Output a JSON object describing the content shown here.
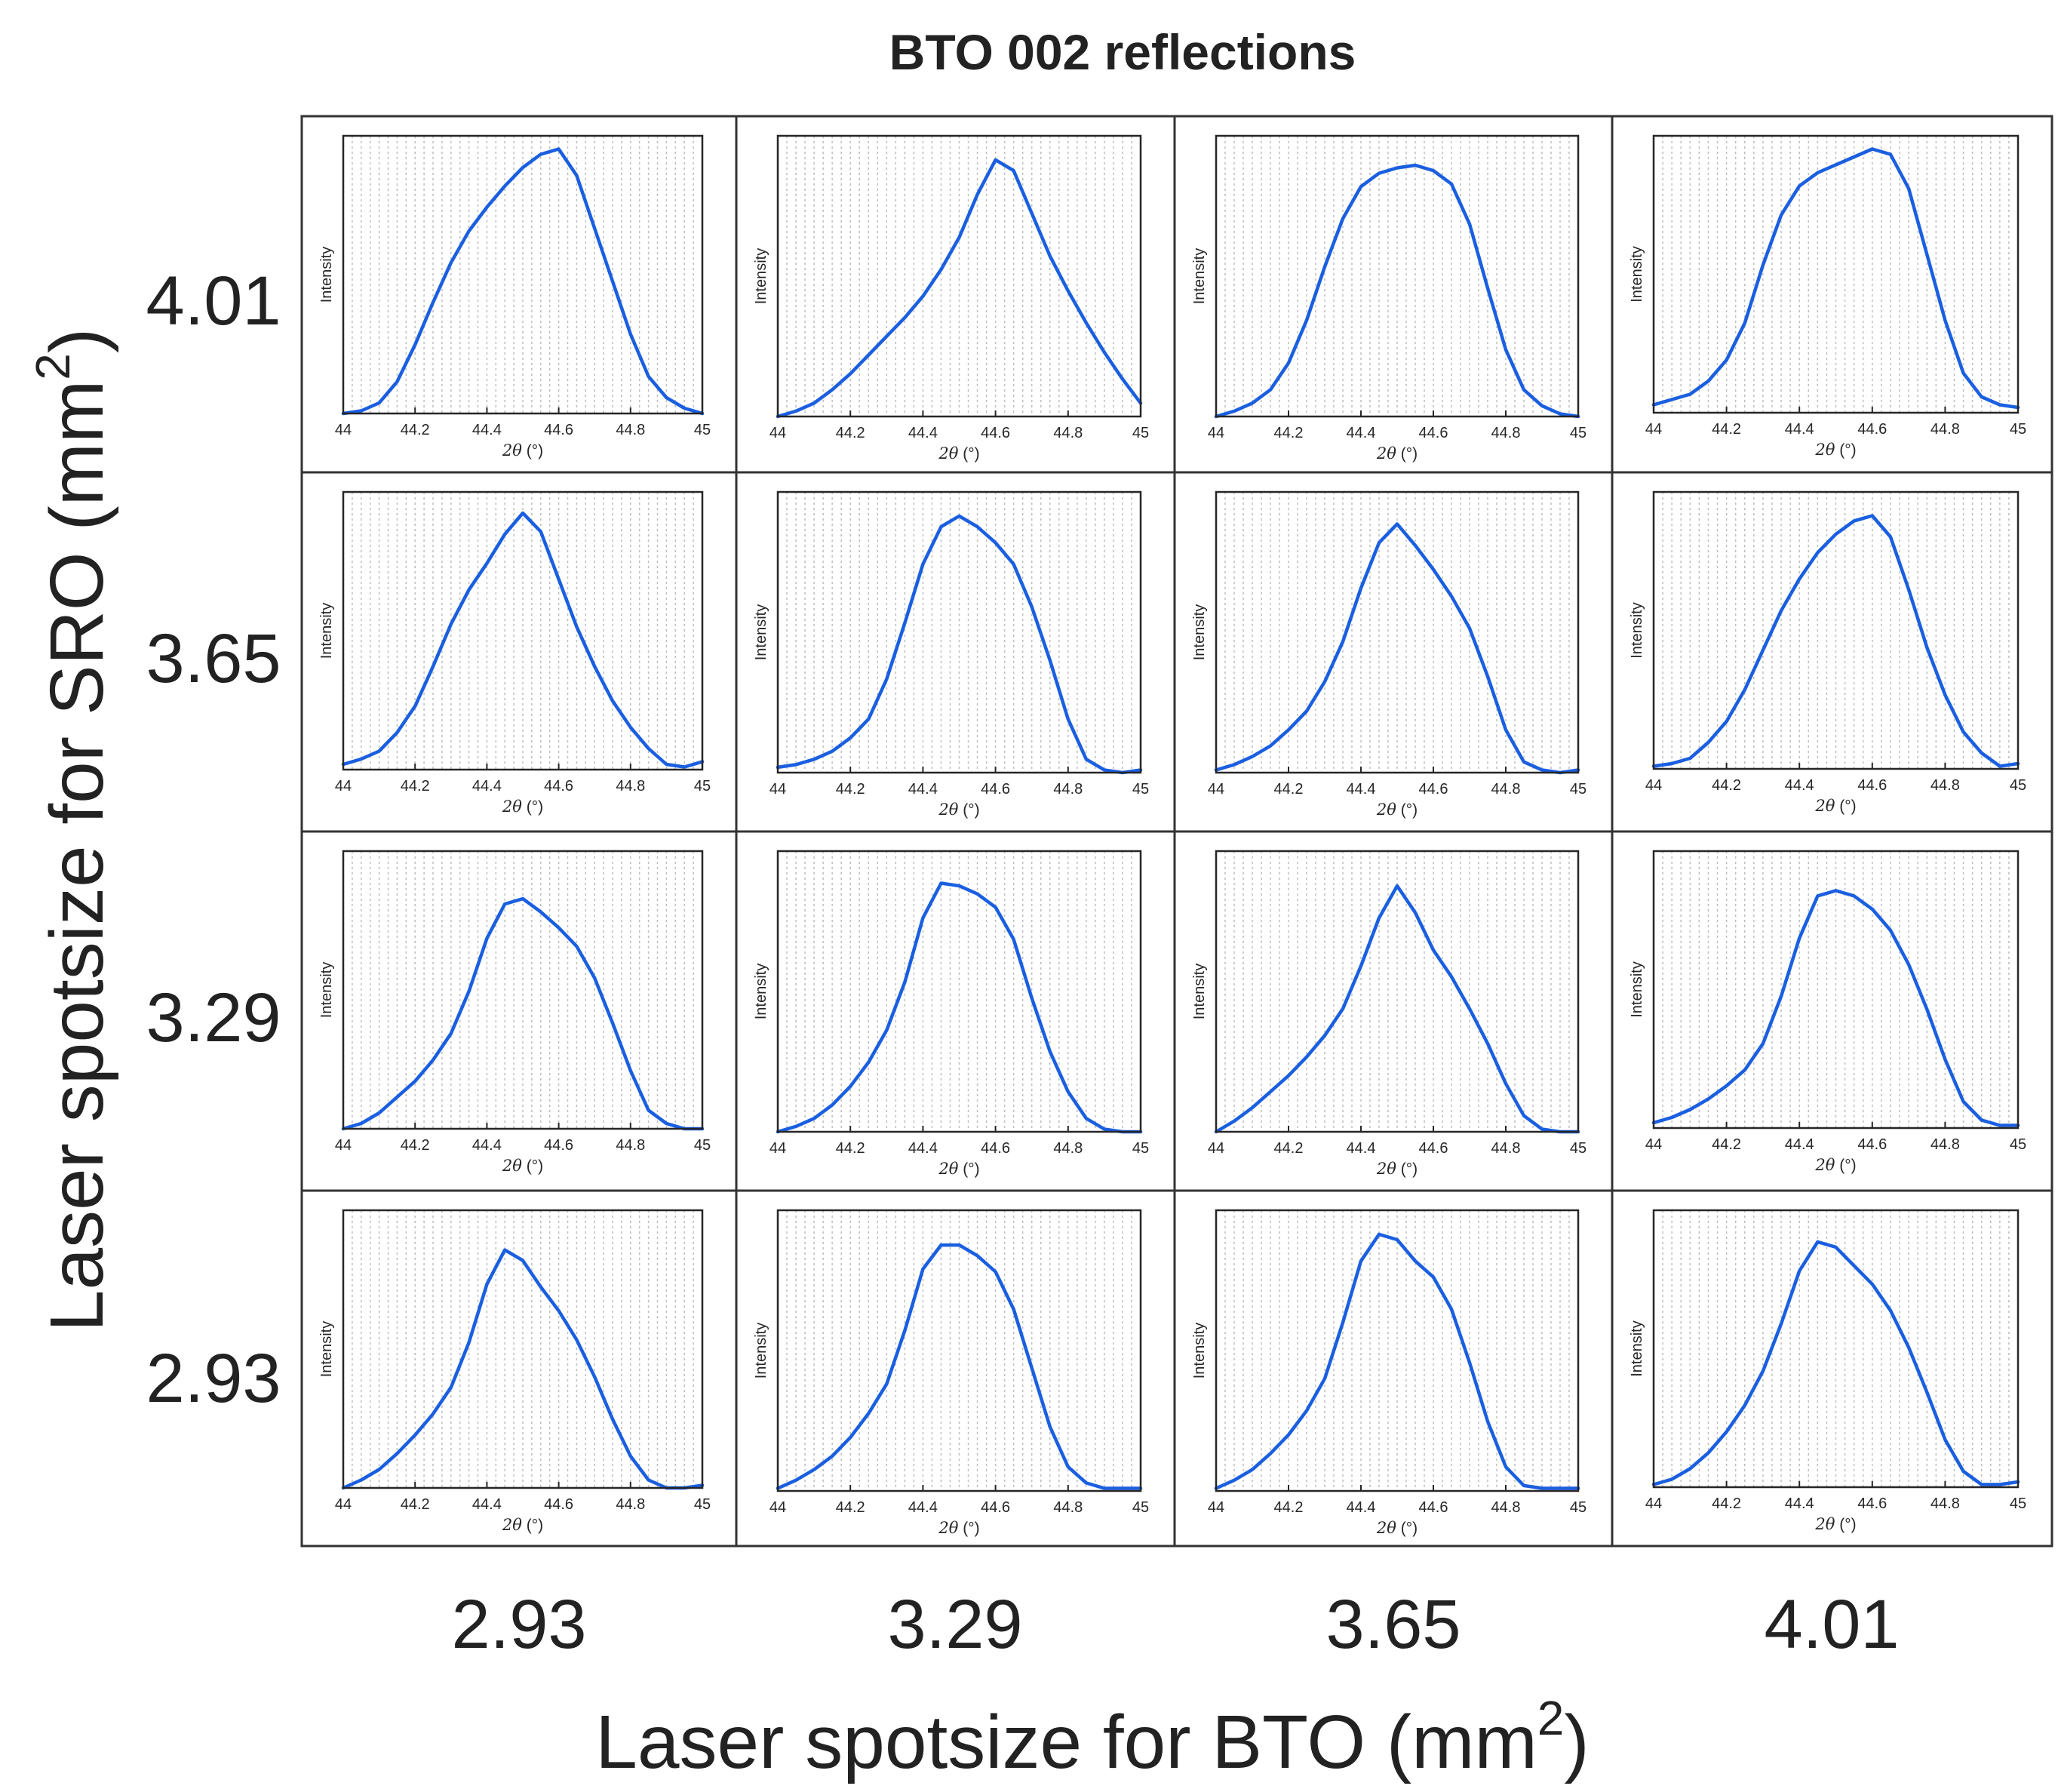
{
  "chart_data": {
    "type": "line",
    "title": "BTO 002 reflections",
    "xlabel_outer": "Laser spotsize for BTO (mm",
    "ylabel_outer": "Laser spotsize for SRO (mm",
    "unit_exponent": "2",
    "unit_close": ")",
    "column_labels": [
      "2.93",
      "3.29",
      "3.65",
      "4.01"
    ],
    "row_labels": [
      "4.01",
      "3.65",
      "3.29",
      "2.93"
    ],
    "panel_xlabel_symbol": "2θ",
    "panel_xlabel_unit": " (°)",
    "panel_ylabel": "Intensity",
    "xlim": [
      44,
      45
    ],
    "xticks": [
      44,
      44.2,
      44.4,
      44.6,
      44.8,
      45
    ],
    "xtick_labels": [
      "44",
      "44.2",
      "44.4",
      "44.6",
      "44.8",
      "45"
    ],
    "ylim": [
      0,
      1.05
    ],
    "line_color": "#1a5fe0",
    "x": [
      44.0,
      44.05,
      44.1,
      44.15,
      44.2,
      44.25,
      44.3,
      44.35,
      44.4,
      44.45,
      44.5,
      44.55,
      44.6,
      44.65,
      44.7,
      44.75,
      44.8,
      44.85,
      44.9,
      44.95,
      45.0
    ],
    "panels": [
      {
        "row_label": "4.01",
        "col_label": "2.93",
        "y": [
          0.0,
          0.01,
          0.04,
          0.12,
          0.26,
          0.42,
          0.57,
          0.69,
          0.78,
          0.86,
          0.93,
          0.98,
          1.0,
          0.9,
          0.7,
          0.5,
          0.3,
          0.14,
          0.06,
          0.02,
          0.0
        ]
      },
      {
        "row_label": "4.01",
        "col_label": "3.29",
        "y": [
          0.0,
          0.02,
          0.05,
          0.1,
          0.16,
          0.23,
          0.3,
          0.37,
          0.45,
          0.55,
          0.67,
          0.83,
          0.96,
          0.92,
          0.76,
          0.6,
          0.47,
          0.35,
          0.24,
          0.14,
          0.05
        ]
      },
      {
        "row_label": "4.01",
        "col_label": "3.65",
        "y": [
          0.0,
          0.02,
          0.05,
          0.1,
          0.2,
          0.36,
          0.56,
          0.74,
          0.86,
          0.91,
          0.93,
          0.94,
          0.92,
          0.87,
          0.72,
          0.48,
          0.25,
          0.1,
          0.04,
          0.01,
          0.0
        ]
      },
      {
        "row_label": "4.01",
        "col_label": "4.01",
        "y": [
          0.03,
          0.05,
          0.07,
          0.12,
          0.2,
          0.34,
          0.56,
          0.75,
          0.86,
          0.91,
          0.94,
          0.97,
          1.0,
          0.98,
          0.85,
          0.6,
          0.35,
          0.15,
          0.06,
          0.03,
          0.02
        ]
      },
      {
        "row_label": "3.65",
        "col_label": "2.93",
        "y": [
          0.02,
          0.04,
          0.07,
          0.14,
          0.24,
          0.39,
          0.55,
          0.68,
          0.78,
          0.89,
          0.97,
          0.9,
          0.72,
          0.54,
          0.39,
          0.26,
          0.16,
          0.08,
          0.02,
          0.01,
          0.03
        ]
      },
      {
        "row_label": "3.65",
        "col_label": "3.29",
        "y": [
          0.02,
          0.03,
          0.05,
          0.08,
          0.13,
          0.2,
          0.35,
          0.56,
          0.78,
          0.92,
          0.96,
          0.92,
          0.86,
          0.78,
          0.62,
          0.42,
          0.2,
          0.05,
          0.01,
          0.0,
          0.01
        ]
      },
      {
        "row_label": "3.65",
        "col_label": "3.65",
        "y": [
          0.01,
          0.03,
          0.06,
          0.1,
          0.16,
          0.23,
          0.34,
          0.49,
          0.69,
          0.86,
          0.93,
          0.85,
          0.76,
          0.66,
          0.54,
          0.36,
          0.16,
          0.04,
          0.01,
          0.0,
          0.01
        ]
      },
      {
        "row_label": "3.65",
        "col_label": "4.01",
        "y": [
          0.01,
          0.02,
          0.04,
          0.1,
          0.18,
          0.3,
          0.45,
          0.6,
          0.72,
          0.82,
          0.89,
          0.94,
          0.96,
          0.88,
          0.68,
          0.46,
          0.28,
          0.14,
          0.06,
          0.01,
          0.02
        ]
      },
      {
        "row_label": "3.29",
        "col_label": "2.93",
        "y": [
          0.0,
          0.02,
          0.06,
          0.12,
          0.18,
          0.26,
          0.36,
          0.52,
          0.72,
          0.85,
          0.87,
          0.82,
          0.76,
          0.69,
          0.57,
          0.4,
          0.22,
          0.07,
          0.02,
          0.0,
          0.0
        ]
      },
      {
        "row_label": "3.29",
        "col_label": "3.29",
        "y": [
          0.0,
          0.02,
          0.05,
          0.1,
          0.17,
          0.26,
          0.38,
          0.56,
          0.8,
          0.93,
          0.92,
          0.89,
          0.84,
          0.72,
          0.5,
          0.3,
          0.15,
          0.05,
          0.01,
          0.0,
          0.0
        ]
      },
      {
        "row_label": "3.29",
        "col_label": "3.65",
        "y": [
          0.0,
          0.04,
          0.09,
          0.15,
          0.21,
          0.28,
          0.36,
          0.46,
          0.62,
          0.8,
          0.92,
          0.82,
          0.68,
          0.58,
          0.46,
          0.33,
          0.18,
          0.06,
          0.01,
          0.0,
          0.0
        ]
      },
      {
        "row_label": "3.29",
        "col_label": "4.01",
        "y": [
          0.02,
          0.04,
          0.07,
          0.11,
          0.16,
          0.22,
          0.32,
          0.5,
          0.72,
          0.88,
          0.9,
          0.88,
          0.83,
          0.75,
          0.62,
          0.45,
          0.26,
          0.1,
          0.03,
          0.01,
          0.01
        ]
      },
      {
        "row_label": "2.93",
        "col_label": "2.93",
        "y": [
          0.0,
          0.03,
          0.07,
          0.13,
          0.2,
          0.28,
          0.38,
          0.55,
          0.77,
          0.9,
          0.86,
          0.76,
          0.67,
          0.56,
          0.42,
          0.26,
          0.12,
          0.03,
          0.0,
          0.0,
          0.01
        ]
      },
      {
        "row_label": "2.93",
        "col_label": "3.29",
        "y": [
          0.01,
          0.04,
          0.08,
          0.13,
          0.2,
          0.29,
          0.4,
          0.6,
          0.83,
          0.92,
          0.92,
          0.88,
          0.82,
          0.68,
          0.46,
          0.24,
          0.09,
          0.03,
          0.01,
          0.01,
          0.01
        ]
      },
      {
        "row_label": "2.93",
        "col_label": "3.65",
        "y": [
          0.01,
          0.04,
          0.08,
          0.14,
          0.21,
          0.3,
          0.42,
          0.63,
          0.86,
          0.96,
          0.94,
          0.86,
          0.8,
          0.68,
          0.48,
          0.26,
          0.09,
          0.02,
          0.01,
          0.01,
          0.01
        ]
      },
      {
        "row_label": "2.93",
        "col_label": "4.01",
        "y": [
          0.01,
          0.03,
          0.07,
          0.13,
          0.21,
          0.31,
          0.44,
          0.62,
          0.82,
          0.93,
          0.91,
          0.84,
          0.77,
          0.67,
          0.53,
          0.36,
          0.18,
          0.06,
          0.01,
          0.01,
          0.02
        ]
      }
    ]
  }
}
